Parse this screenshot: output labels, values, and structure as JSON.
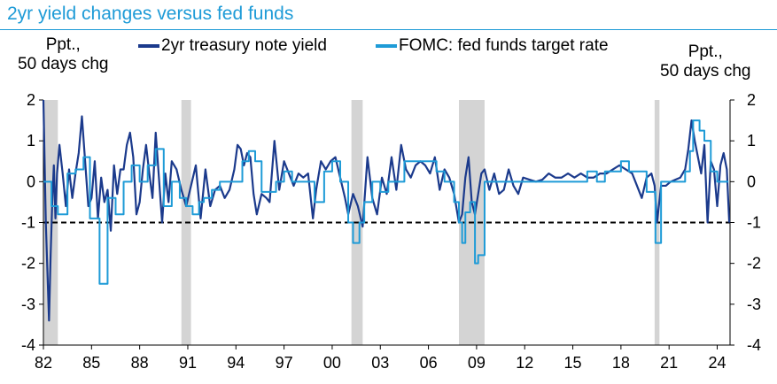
{
  "header": {
    "title": "2yr yield changes versus fed funds",
    "left_unit_line1": "Ppt.,",
    "left_unit_line2": "50 days chg",
    "right_unit_line1": "Ppt.,",
    "right_unit_line2": "50 days chg"
  },
  "legend": {
    "series1": "2yr treasury note yield",
    "series2": "FOMC: fed funds target rate"
  },
  "colors": {
    "title": "#1e9bd7",
    "series1": "#1b3a8c",
    "series2": "#1e9bd7",
    "recession": "#d4d4d4",
    "reference": "#000000"
  },
  "chart_data": {
    "type": "line",
    "xlim": [
      1982,
      2024.8
    ],
    "ylim": [
      -4,
      2
    ],
    "x_ticks": [
      {
        "value": 1982,
        "label": "82"
      },
      {
        "value": 1985,
        "label": "85"
      },
      {
        "value": 1988,
        "label": "88"
      },
      {
        "value": 1991,
        "label": "91"
      },
      {
        "value": 1994,
        "label": "94"
      },
      {
        "value": 1997,
        "label": "97"
      },
      {
        "value": 2000,
        "label": "00"
      },
      {
        "value": 2003,
        "label": "03"
      },
      {
        "value": 2006,
        "label": "06"
      },
      {
        "value": 2009,
        "label": "09"
      },
      {
        "value": 2012,
        "label": "12"
      },
      {
        "value": 2015,
        "label": "15"
      },
      {
        "value": 2018,
        "label": "18"
      },
      {
        "value": 2021,
        "label": "21"
      },
      {
        "value": 2024,
        "label": "24"
      }
    ],
    "y_ticks_left": [
      2,
      1,
      0,
      -1,
      -2,
      -3,
      -4
    ],
    "y_ticks_right": [
      2,
      1,
      0,
      -1,
      -2,
      -3,
      -4
    ],
    "y_tick_labels": [
      "2",
      "1",
      "0",
      "-1",
      "-2",
      "-3",
      "-4"
    ],
    "reference_line": {
      "y": -1,
      "style": "dashed"
    },
    "recessions": [
      [
        1982.0,
        1982.9
      ],
      [
        1990.6,
        1991.2
      ],
      [
        2001.2,
        2001.9
      ],
      [
        2007.9,
        2009.5
      ],
      [
        2020.1,
        2020.4
      ]
    ],
    "series": [
      {
        "name": "2yr treasury note yield",
        "color": "#1b3a8c",
        "x": [
          1982.0,
          1982.08,
          1982.15,
          1982.25,
          1982.35,
          1982.45,
          1982.55,
          1982.65,
          1982.75,
          1982.85,
          1983.0,
          1983.2,
          1983.4,
          1983.6,
          1983.8,
          1984.0,
          1984.2,
          1984.4,
          1984.6,
          1984.8,
          1985.0,
          1985.2,
          1985.4,
          1985.6,
          1985.8,
          1986.0,
          1986.2,
          1986.4,
          1986.6,
          1986.8,
          1987.0,
          1987.2,
          1987.4,
          1987.6,
          1987.8,
          1988.0,
          1988.2,
          1988.4,
          1988.6,
          1988.8,
          1989.0,
          1989.2,
          1989.4,
          1989.6,
          1989.8,
          1990.0,
          1990.3,
          1990.6,
          1990.9,
          1991.2,
          1991.5,
          1991.8,
          1992.1,
          1992.4,
          1992.7,
          1993.0,
          1993.3,
          1993.6,
          1993.9,
          1994.1,
          1994.3,
          1994.5,
          1994.7,
          1994.9,
          1995.1,
          1995.3,
          1995.6,
          1995.9,
          1996.1,
          1996.4,
          1996.7,
          1997.0,
          1997.3,
          1997.6,
          1997.9,
          1998.2,
          1998.5,
          1998.8,
          1999.0,
          1999.3,
          1999.6,
          1999.9,
          2000.2,
          2000.5,
          2000.8,
          2001.0,
          2001.3,
          2001.6,
          2001.9,
          2002.2,
          2002.5,
          2002.8,
          2003.1,
          2003.4,
          2003.7,
          2004.0,
          2004.3,
          2004.6,
          2004.9,
          2005.2,
          2005.5,
          2005.8,
          2006.1,
          2006.4,
          2006.7,
          2007.0,
          2007.3,
          2007.6,
          2007.9,
          2008.1,
          2008.3,
          2008.5,
          2008.7,
          2008.9,
          2009.1,
          2009.3,
          2009.5,
          2009.8,
          2010.1,
          2010.4,
          2010.7,
          2011.0,
          2011.3,
          2011.6,
          2011.9,
          2012.3,
          2012.7,
          2013.1,
          2013.5,
          2013.9,
          2014.3,
          2014.7,
          2015.1,
          2015.5,
          2015.9,
          2016.3,
          2016.7,
          2017.1,
          2017.5,
          2017.9,
          2018.3,
          2018.7,
          2019.0,
          2019.3,
          2019.6,
          2019.9,
          2020.1,
          2020.25,
          2020.5,
          2020.8,
          2021.1,
          2021.4,
          2021.7,
          2022.0,
          2022.2,
          2022.4,
          2022.6,
          2022.8,
          2023.0,
          2023.2,
          2023.4,
          2023.6,
          2023.8,
          2024.0,
          2024.2,
          2024.4,
          2024.6,
          2024.75
        ],
        "y": [
          2.0,
          0.4,
          -1.0,
          -2.2,
          -3.4,
          -1.8,
          -0.5,
          0.4,
          -0.9,
          0.2,
          0.9,
          0.2,
          -0.6,
          0.3,
          -0.4,
          0.2,
          0.7,
          1.6,
          0.5,
          -0.6,
          -0.4,
          0.5,
          -0.9,
          0.1,
          -0.5,
          -0.2,
          -1.2,
          0.4,
          -0.3,
          0.3,
          0.3,
          0.9,
          1.2,
          0.6,
          -0.8,
          -0.5,
          0.3,
          0.9,
          0.2,
          -0.4,
          1.2,
          0.1,
          -1.0,
          0.2,
          -0.5,
          0.5,
          0.3,
          -0.2,
          -0.6,
          -0.1,
          0.4,
          -0.9,
          0.3,
          -0.6,
          -0.2,
          -0.1,
          -0.4,
          -0.2,
          0.3,
          0.9,
          0.8,
          0.4,
          0.7,
          0.6,
          -0.3,
          -0.8,
          -0.3,
          -0.4,
          -0.5,
          1.0,
          -0.2,
          0.5,
          0.2,
          -0.1,
          0.2,
          0.1,
          0.2,
          -0.9,
          -0.2,
          0.5,
          0.3,
          0.5,
          0.6,
          0.1,
          -0.4,
          -0.8,
          -0.3,
          -0.6,
          -1.1,
          0.6,
          -0.4,
          -0.8,
          0.1,
          -0.3,
          0.6,
          -0.2,
          0.9,
          0.3,
          0.1,
          0.4,
          0.5,
          0.4,
          0.2,
          0.6,
          -0.2,
          0.3,
          0.1,
          -0.3,
          -1.0,
          -0.8,
          0.1,
          0.6,
          -0.5,
          -0.8,
          -0.3,
          0.2,
          0.3,
          -0.2,
          0.2,
          -0.3,
          -0.2,
          0.3,
          -0.1,
          -0.3,
          0.1,
          0.05,
          0.0,
          0.05,
          0.2,
          0.1,
          0.1,
          0.2,
          0.1,
          0.2,
          0.1,
          0.1,
          0.2,
          0.2,
          0.3,
          0.4,
          0.3,
          0.2,
          -0.1,
          -0.4,
          0.1,
          0.2,
          -0.1,
          -1.0,
          -0.1,
          -0.1,
          0.0,
          0.05,
          0.1,
          0.3,
          0.8,
          1.5,
          1.0,
          0.6,
          0.2,
          0.9,
          -1.0,
          0.5,
          0.3,
          -0.6,
          0.4,
          0.7,
          0.3,
          -1.0
        ]
      },
      {
        "name": "FOMC: fed funds target rate",
        "color": "#1e9bd7",
        "x": [
          1982.0,
          1982.5,
          1982.9,
          1983.5,
          1984.0,
          1984.5,
          1984.9,
          1985.2,
          1985.5,
          1986.0,
          1986.5,
          1987.0,
          1987.5,
          1988.0,
          1988.5,
          1989.0,
          1989.5,
          1990.0,
          1990.5,
          1990.9,
          1991.3,
          1991.7,
          1992.0,
          1992.5,
          1993.0,
          1994.0,
          1994.4,
          1994.8,
          1995.2,
          1995.6,
          1996.0,
          1996.5,
          1997.0,
          1997.5,
          1998.0,
          1998.5,
          1998.9,
          1999.5,
          2000.0,
          2000.5,
          2001.0,
          2001.3,
          2001.7,
          2002.0,
          2002.5,
          2003.0,
          2003.5,
          2004.0,
          2004.5,
          2005.0,
          2005.5,
          2006.0,
          2006.5,
          2007.0,
          2007.6,
          2007.9,
          2008.1,
          2008.3,
          2008.6,
          2008.9,
          2009.1,
          2009.5,
          2010.0,
          2012.0,
          2014.0,
          2015.9,
          2016.5,
          2017.0,
          2017.5,
          2018.0,
          2018.5,
          2019.0,
          2019.6,
          2019.9,
          2020.15,
          2020.25,
          2020.5,
          2021.0,
          2022.0,
          2022.3,
          2022.5,
          2022.7,
          2022.9,
          2023.2,
          2023.6,
          2024.0,
          2024.7
        ],
        "y": [
          0.0,
          -0.6,
          -0.8,
          0.2,
          0.3,
          0.6,
          -0.9,
          -0.9,
          -2.5,
          -0.4,
          -0.8,
          0.0,
          0.4,
          0.0,
          0.4,
          0.8,
          -0.6,
          0.0,
          -0.4,
          -0.6,
          -0.8,
          -0.5,
          -0.4,
          -0.2,
          0.0,
          0.0,
          0.5,
          0.75,
          0.5,
          -0.25,
          -0.25,
          0.0,
          0.25,
          0.0,
          0.0,
          0.0,
          -0.5,
          0.25,
          0.5,
          0.0,
          -1.0,
          -1.5,
          -1.0,
          -0.5,
          0.0,
          -0.25,
          0.0,
          0.0,
          0.5,
          0.5,
          0.5,
          0.5,
          0.25,
          0.0,
          -0.5,
          -1.0,
          -1.5,
          -0.75,
          -0.5,
          -2.0,
          -1.8,
          0.0,
          0.0,
          0.0,
          0.0,
          0.25,
          0.0,
          0.25,
          0.25,
          0.5,
          0.25,
          0.25,
          -0.25,
          -0.25,
          -1.5,
          -1.5,
          0.0,
          0.0,
          0.25,
          0.75,
          1.5,
          1.5,
          1.25,
          1.0,
          0.25,
          0.0,
          0.0
        ]
      }
    ]
  }
}
